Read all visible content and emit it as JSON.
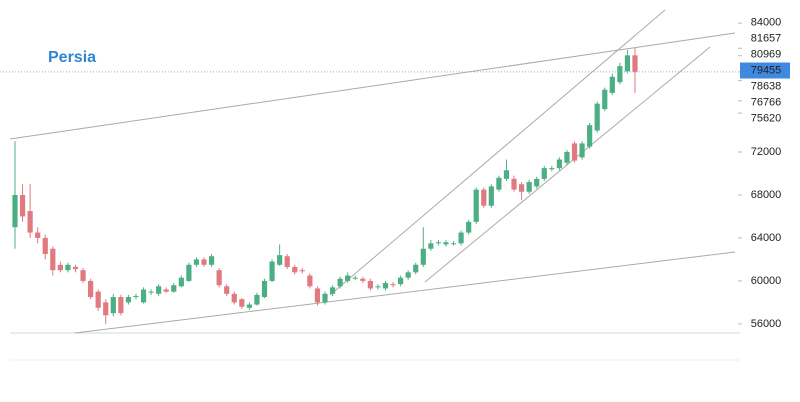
{
  "chart_data": {
    "type": "candlestick",
    "title": "Persia",
    "categories": [
      null,
      null,
      null,
      null,
      null,
      null,
      null,
      null,
      null,
      null,
      null,
      null,
      null,
      null,
      null,
      null,
      null,
      null,
      null,
      null,
      null,
      null,
      null,
      null,
      null,
      null,
      null,
      null,
      null,
      null,
      null,
      null,
      null,
      null,
      null,
      null,
      null,
      null,
      null,
      null,
      null,
      null,
      null,
      null,
      null,
      null,
      null,
      null,
      null,
      null,
      null,
      null,
      null,
      null,
      null,
      null,
      null,
      null,
      null,
      null,
      null,
      null,
      null,
      null,
      null,
      null,
      null,
      null,
      null,
      null,
      null,
      null,
      null,
      null,
      null,
      null,
      null,
      null,
      null,
      null,
      null,
      null,
      null
    ],
    "open": [
      65000,
      68000,
      66500,
      64500,
      64000,
      63000,
      61500,
      61000,
      61300,
      61000,
      60000,
      59000,
      58000,
      57000,
      58500,
      58000,
      58500,
      58000,
      59000,
      58800,
      59200,
      59000,
      59500,
      60000,
      61500,
      62000,
      61500,
      61000,
      59500,
      58800,
      58300,
      57500,
      57800,
      58500,
      60000,
      61500,
      62300,
      61300,
      61000,
      60500,
      59300,
      58000,
      58800,
      59500,
      60000,
      60300,
      60200,
      60000,
      59400,
      59300,
      59700,
      59700,
      60300,
      60800,
      61500,
      63000,
      63500,
      63400,
      63500,
      63500,
      64500,
      65500,
      68500,
      67000,
      68500,
      69500,
      69500,
      69000,
      68300,
      68800,
      69500,
      70400,
      70500,
      71000,
      72800,
      71500,
      72500,
      74000,
      76000,
      77500,
      78500,
      79500,
      81000
    ],
    "high": [
      73000,
      69000,
      69000,
      65000,
      64300,
      63200,
      61800,
      61700,
      61500,
      61200,
      60200,
      59200,
      58300,
      58800,
      58700,
      58700,
      58800,
      59400,
      59200,
      59700,
      59400,
      59800,
      60500,
      61700,
      62200,
      62200,
      62500,
      61200,
      59700,
      59000,
      58400,
      58000,
      58900,
      60200,
      62000,
      63400,
      62500,
      61500,
      61200,
      60700,
      59500,
      59000,
      59600,
      60400,
      60800,
      60500,
      60400,
      60200,
      59700,
      60000,
      59900,
      60500,
      61000,
      61700,
      65000,
      63800,
      63800,
      63800,
      63700,
      64700,
      65700,
      68700,
      68700,
      69000,
      69800,
      71300,
      69800,
      69200,
      69400,
      69700,
      70700,
      70700,
      71500,
      72200,
      73000,
      73000,
      74700,
      76700,
      78000,
      79300,
      80300,
      81500,
      81700
    ],
    "low": [
      63000,
      65500,
      64000,
      63500,
      62000,
      60500,
      60800,
      60800,
      60800,
      59800,
      58300,
      57200,
      56000,
      56700,
      56800,
      57800,
      58300,
      57900,
      58700,
      58600,
      58900,
      58900,
      59400,
      59900,
      61300,
      61300,
      61300,
      59400,
      58600,
      57800,
      57400,
      57300,
      57700,
      58400,
      59900,
      61400,
      61100,
      60600,
      60700,
      59300,
      57700,
      57800,
      58600,
      59300,
      59800,
      60100,
      59800,
      59100,
      59200,
      59100,
      59400,
      59500,
      60100,
      60600,
      61300,
      62800,
      63300,
      63200,
      63300,
      63300,
      64300,
      65300,
      66800,
      66800,
      68300,
      69300,
      68300,
      67500,
      68100,
      68600,
      69300,
      70200,
      70300,
      70800,
      71000,
      71300,
      72300,
      73800,
      75800,
      77300,
      78300,
      79300,
      77500
    ],
    "close": [
      68000,
      66000,
      64500,
      64000,
      62500,
      61000,
      61000,
      61500,
      61100,
      60000,
      58500,
      57500,
      56800,
      58500,
      57000,
      58500,
      58600,
      59200,
      59000,
      59500,
      59000,
      59600,
      60300,
      61500,
      62000,
      61500,
      62300,
      59600,
      58800,
      58000,
      57600,
      57800,
      58700,
      60000,
      61800,
      62400,
      61300,
      60800,
      60900,
      59500,
      58000,
      58800,
      59400,
      60200,
      60500,
      60300,
      60000,
      59300,
      59500,
      59800,
      59600,
      60300,
      60800,
      61500,
      63000,
      63500,
      63600,
      63600,
      63500,
      64500,
      65500,
      68500,
      67000,
      68800,
      69600,
      70300,
      68500,
      68300,
      69200,
      69500,
      70500,
      70500,
      71300,
      72000,
      71200,
      72800,
      74500,
      76500,
      77800,
      79000,
      80000,
      81000,
      79455
    ],
    "up_color": "#4caf84",
    "down_color": "#e07a80",
    "ylim": [
      54500,
      86150
    ],
    "yticks": [
      56000,
      60000,
      64000,
      68000,
      72000,
      84000
    ],
    "price_levels": [
      81657,
      80969,
      78638,
      76766,
      75620
    ]
  }
}
